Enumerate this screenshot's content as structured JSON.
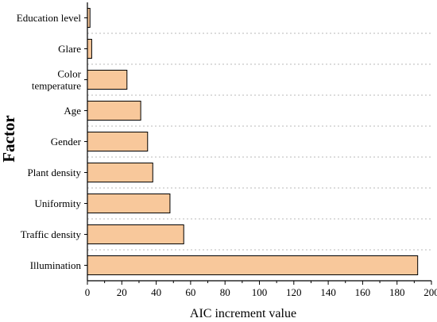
{
  "chart_data": {
    "type": "bar",
    "orientation": "horizontal",
    "xlabel": "AIC increment value",
    "ylabel": "Factor",
    "xlim": [
      0,
      200
    ],
    "xticks": [
      0,
      20,
      40,
      60,
      80,
      100,
      120,
      140,
      160,
      180,
      200
    ],
    "grid": "dotted horizontal",
    "legend": "none",
    "categories": [
      {
        "label": [
          "Education level"
        ],
        "value": 1.5
      },
      {
        "label": [
          "Glare"
        ],
        "value": 2.5
      },
      {
        "label": [
          "Color",
          "temperature"
        ],
        "value": 23
      },
      {
        "label": [
          "Age"
        ],
        "value": 31
      },
      {
        "label": [
          "Gender"
        ],
        "value": 35
      },
      {
        "label": [
          "Plant density"
        ],
        "value": 38
      },
      {
        "label": [
          "Uniformity"
        ],
        "value": 48
      },
      {
        "label": [
          "Traffic density"
        ],
        "value": 56
      },
      {
        "label": [
          "Illumination"
        ],
        "value": 192
      }
    ],
    "colors": {
      "bar_fill": "#f8c89b",
      "bar_stroke": "#000000",
      "grid": "#b8b8b8",
      "axis": "#000000"
    }
  }
}
